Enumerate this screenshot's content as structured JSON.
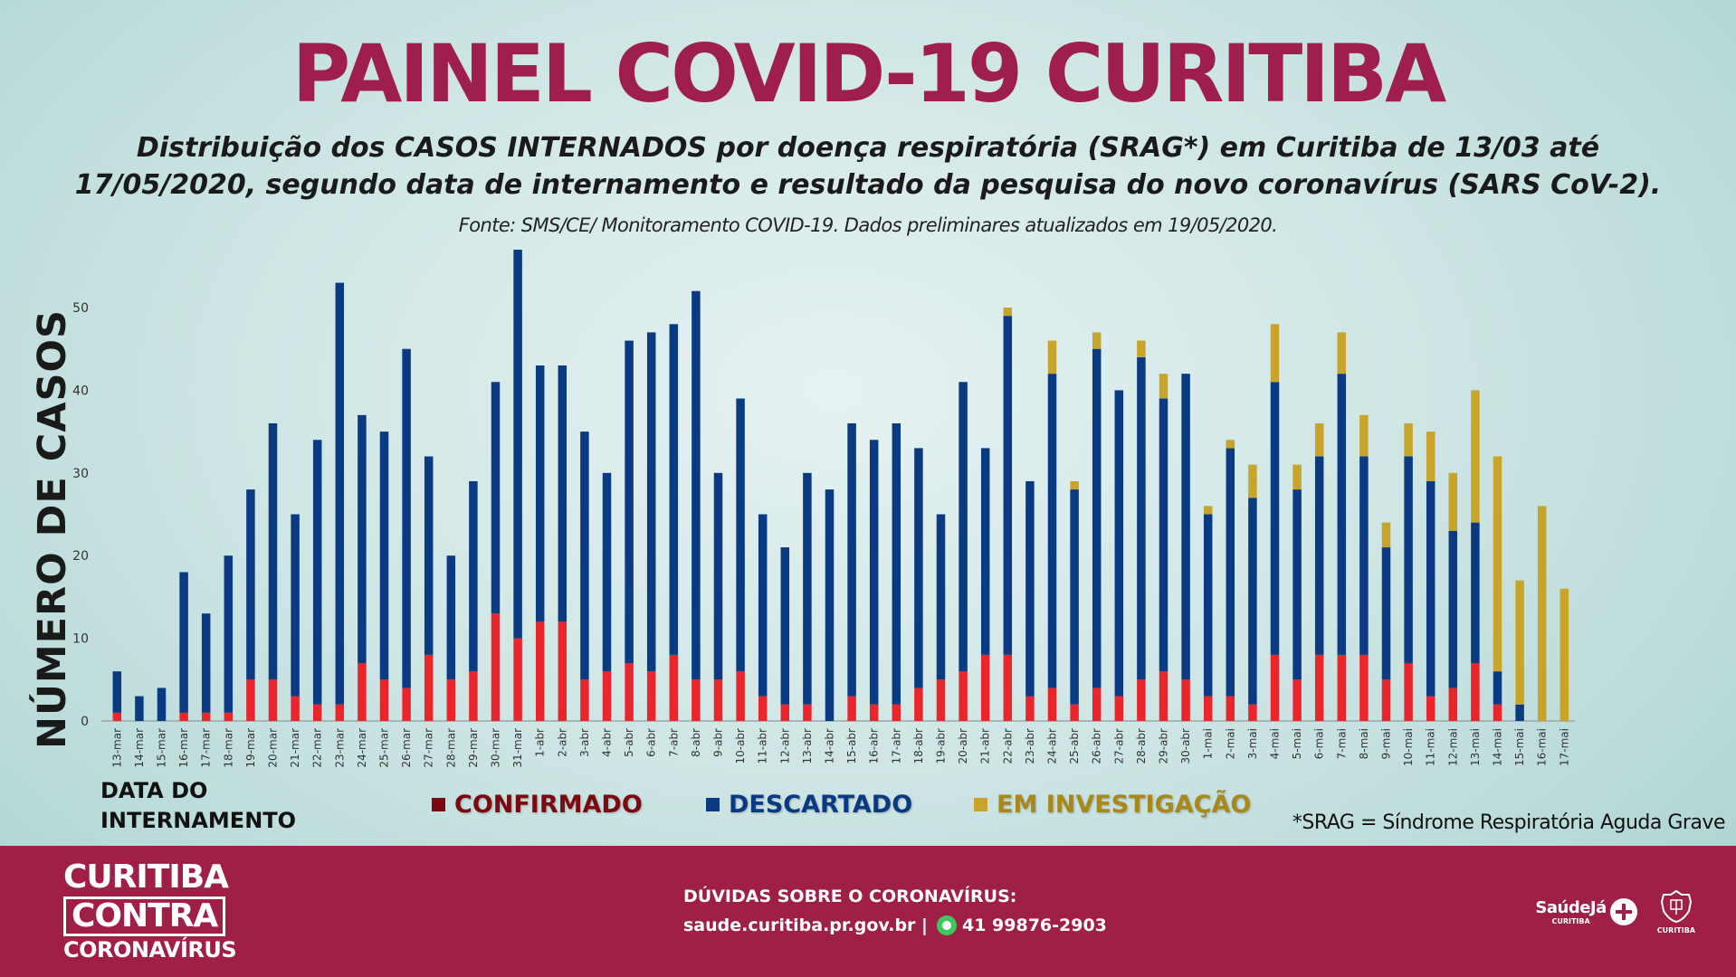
{
  "header": {
    "title": "PAINEL COVID-19 CURITIBA",
    "subtitle_line1": "Distribuição dos CASOS INTERNADOS por doença respiratória (SRAG*) em Curitiba de 13/03 até",
    "subtitle_line2": "17/05/2020, segundo data de internamento e resultado da pesquisa do novo coronavírus (SARS CoV-2).",
    "source": "Fonte: SMS/CE/ Monitoramento COVID-19. Dados preliminares atualizados em 19/05/2020."
  },
  "chart_data": {
    "type": "bar",
    "stacked": true,
    "ylabel": "NÚMERO DE CASOS",
    "xlabel_line1": "DATA DO",
    "xlabel_line2": "INTERNAMENTO",
    "ylim": [
      0,
      58
    ],
    "yticks": [
      0,
      10,
      20,
      30,
      40,
      50
    ],
    "grid": false,
    "legend_position": "bottom",
    "categories": [
      "13-mar",
      "14-mar",
      "15-mar",
      "16-mar",
      "17-mar",
      "18-mar",
      "19-mar",
      "20-mar",
      "21-mar",
      "22-mar",
      "23-mar",
      "24-mar",
      "25-mar",
      "26-mar",
      "27-mar",
      "28-mar",
      "29-mar",
      "30-mar",
      "31-mar",
      "1-abr",
      "2-abr",
      "3-abr",
      "4-abr",
      "5-abr",
      "6-abr",
      "7-abr",
      "8-abr",
      "9-abr",
      "10-abr",
      "11-abr",
      "12-abr",
      "13-abr",
      "14-abr",
      "15-abr",
      "16-abr",
      "17-abr",
      "18-abr",
      "19-abr",
      "20-abr",
      "21-abr",
      "22-abr",
      "23-abr",
      "24-abr",
      "25-abr",
      "26-abr",
      "27-abr",
      "28-abr",
      "29-abr",
      "30-abr",
      "1-mai",
      "2-mai",
      "3-mai",
      "4-mai",
      "5-mai",
      "6-mai",
      "7-mai",
      "8-mai",
      "9-mai",
      "10-mai",
      "11-mai",
      "12-mai",
      "13-mai",
      "14-mai",
      "15-mai",
      "16-mai",
      "17-mai"
    ],
    "series": [
      {
        "name": "CONFIRMADO",
        "color": "#e8262c",
        "values": [
          1,
          0,
          0,
          1,
          1,
          1,
          5,
          5,
          3,
          2,
          2,
          7,
          5,
          4,
          8,
          5,
          6,
          13,
          10,
          12,
          12,
          5,
          6,
          7,
          6,
          8,
          5,
          5,
          6,
          3,
          2,
          2,
          0,
          3,
          2,
          2,
          4,
          5,
          6,
          8,
          8,
          3,
          4,
          2,
          4,
          3,
          5,
          6,
          5,
          3,
          3,
          2,
          8,
          5,
          8,
          8,
          8,
          5,
          7,
          3,
          4,
          7,
          2,
          0,
          0,
          0
        ]
      },
      {
        "name": "DESCARTADO",
        "color": "#0a3a82",
        "values": [
          5,
          3,
          4,
          17,
          12,
          19,
          23,
          31,
          22,
          32,
          51,
          30,
          30,
          41,
          24,
          15,
          23,
          28,
          47,
          31,
          31,
          30,
          24,
          39,
          41,
          40,
          47,
          25,
          33,
          22,
          19,
          28,
          28,
          33,
          32,
          34,
          29,
          20,
          35,
          25,
          41,
          26,
          38,
          26,
          41,
          37,
          39,
          33,
          37,
          22,
          30,
          25,
          33,
          23,
          24,
          34,
          24,
          16,
          25,
          26,
          19,
          17,
          4,
          2,
          0,
          0
        ]
      },
      {
        "name": "EM INVESTIGAÇÃO",
        "color": "#c8a52a",
        "values": [
          0,
          0,
          0,
          0,
          0,
          0,
          0,
          0,
          0,
          0,
          0,
          0,
          0,
          0,
          0,
          0,
          0,
          0,
          0,
          0,
          0,
          0,
          0,
          0,
          0,
          0,
          0,
          0,
          0,
          0,
          0,
          0,
          0,
          0,
          0,
          0,
          0,
          0,
          0,
          0,
          1,
          0,
          4,
          1,
          2,
          0,
          2,
          3,
          0,
          1,
          1,
          4,
          7,
          3,
          4,
          5,
          5,
          3,
          4,
          6,
          7,
          16,
          26,
          15,
          26,
          16
        ]
      }
    ],
    "legend_marker_colors": [
      "#7a0a10",
      "#0a3a82",
      "#c8a52a"
    ],
    "footnote": "*SRAG = Síndrome Respiratória Aguda Grave"
  },
  "footer": {
    "brand_line1": "CURITIBA",
    "brand_line2": "CONTRA",
    "brand_line3": "CORONAVÍRUS",
    "contact_title": "DÚVIDAS SOBRE O CORONAVÍRUS:",
    "contact_site": "saude.curitiba.pr.gov.br |",
    "contact_phone": "41 99876-2903",
    "logo1_name": "SaúdeJá",
    "logo1_sub": "CURITIBA",
    "logo2_sub": "CURITIBA",
    "icons": [
      "whatsapp-icon",
      "plus-icon",
      "crest-icon"
    ]
  }
}
